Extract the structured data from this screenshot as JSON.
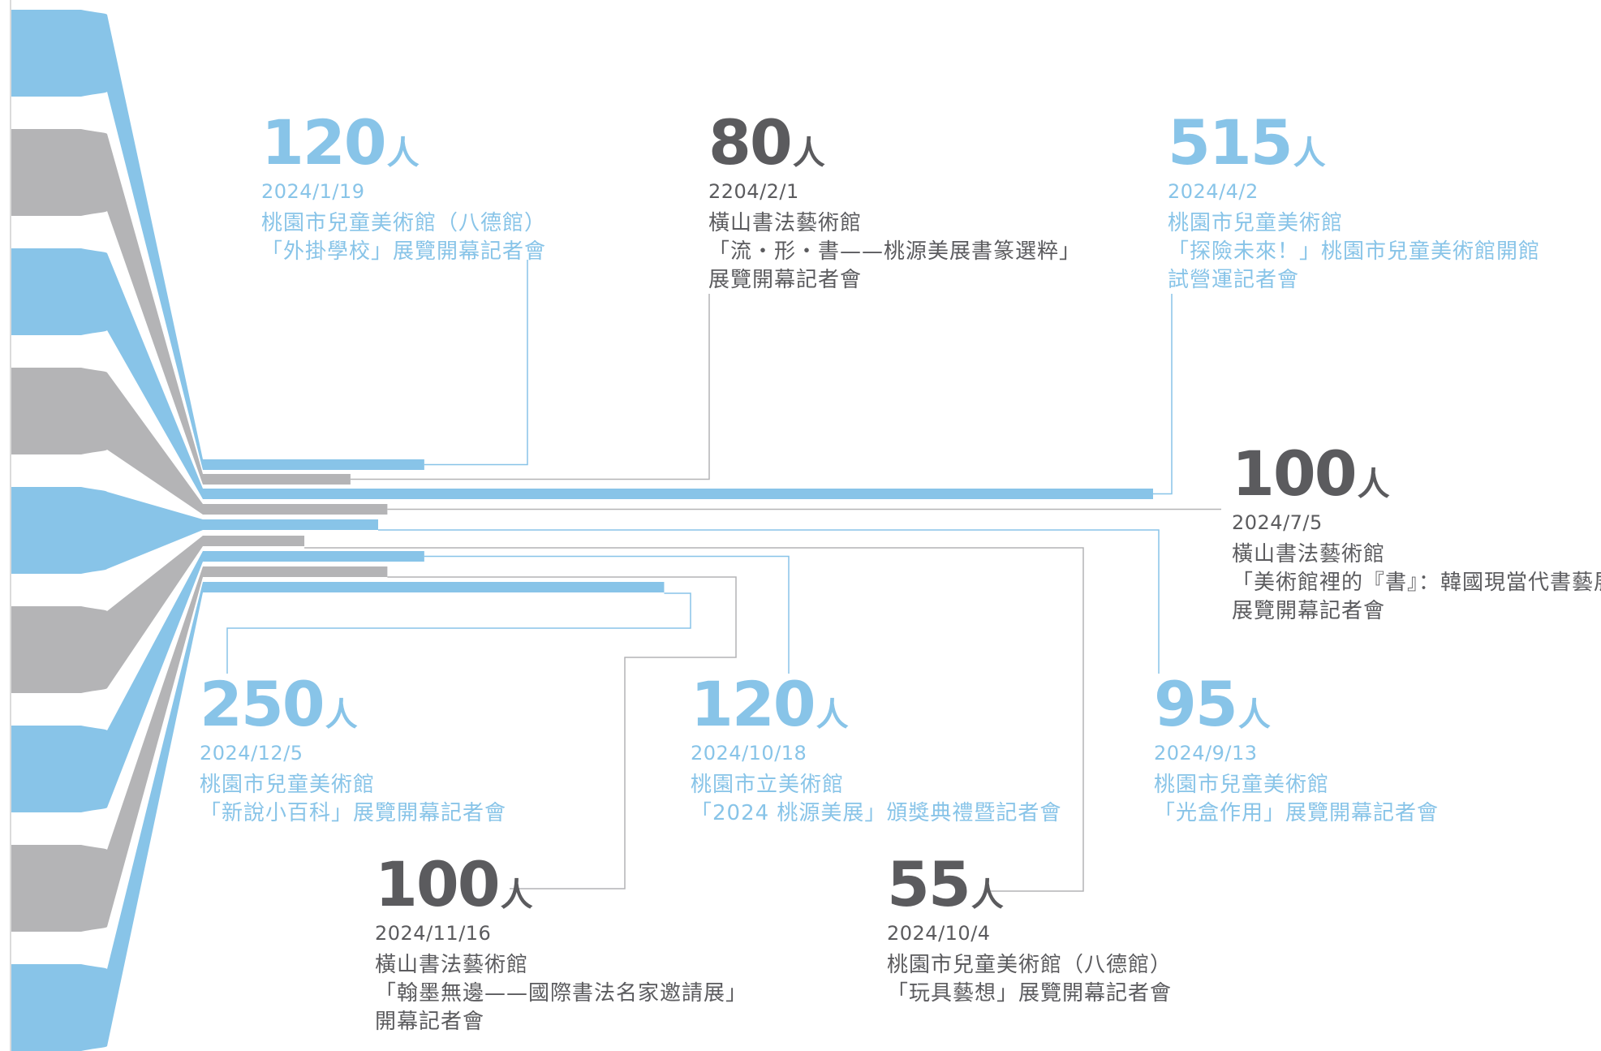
{
  "colors": {
    "blue": "#88c4e8",
    "gray": "#b4b4b6",
    "gray_text": "#5b5b5e",
    "axis": "#cfcfcf"
  },
  "unit": "人",
  "chart_data": {
    "type": "bar",
    "xlim": [
      0,
      515
    ],
    "events": [
      {
        "count": 120,
        "date": "2024/1/19",
        "venue": "桃園市兒童美術館（八德館）",
        "title": "「外掛學校」展覽開幕記者會",
        "color": "blue"
      },
      {
        "count": 80,
        "date": "2204/2/1",
        "venue": "橫山書法藝術館",
        "title": "「流・形・書——桃源美展書篆選粹」\n展覽開幕記者會",
        "color": "gray"
      },
      {
        "count": 515,
        "date": "2024/4/2",
        "venue": "桃園市兒童美術館",
        "title": "「探險未來！」桃園市兒童美術館開館\n試營運記者會",
        "color": "blue"
      },
      {
        "count": 100,
        "date": "2024/7/5",
        "venue": "橫山書法藝術館",
        "title": "「美術館裡的『書』：韓國現當代書藝展」\n展覽開幕記者會",
        "color": "gray"
      },
      {
        "count": 95,
        "date": "2024/9/13",
        "venue": "桃園市兒童美術館",
        "title": "「光盒作用」展覽開幕記者會",
        "color": "blue"
      },
      {
        "count": 55,
        "date": "2024/10/4",
        "venue": "桃園市兒童美術館（八德館）",
        "title": "「玩具藝想」展覽開幕記者會",
        "color": "gray"
      },
      {
        "count": 120,
        "date": "2024/10/18",
        "venue": "桃園市立美術館",
        "title": "「2024 桃源美展」頒獎典禮暨記者會",
        "color": "blue"
      },
      {
        "count": 100,
        "date": "2024/11/16",
        "venue": "橫山書法藝術館",
        "title": "「翰墨無邊——國際書法名家邀請展」\n開幕記者會",
        "color": "gray"
      },
      {
        "count": 250,
        "date": "2024/12/5",
        "venue": "桃園市兒童美術館",
        "title": "「新說小百科」展覽開幕記者會",
        "color": "blue"
      }
    ]
  }
}
